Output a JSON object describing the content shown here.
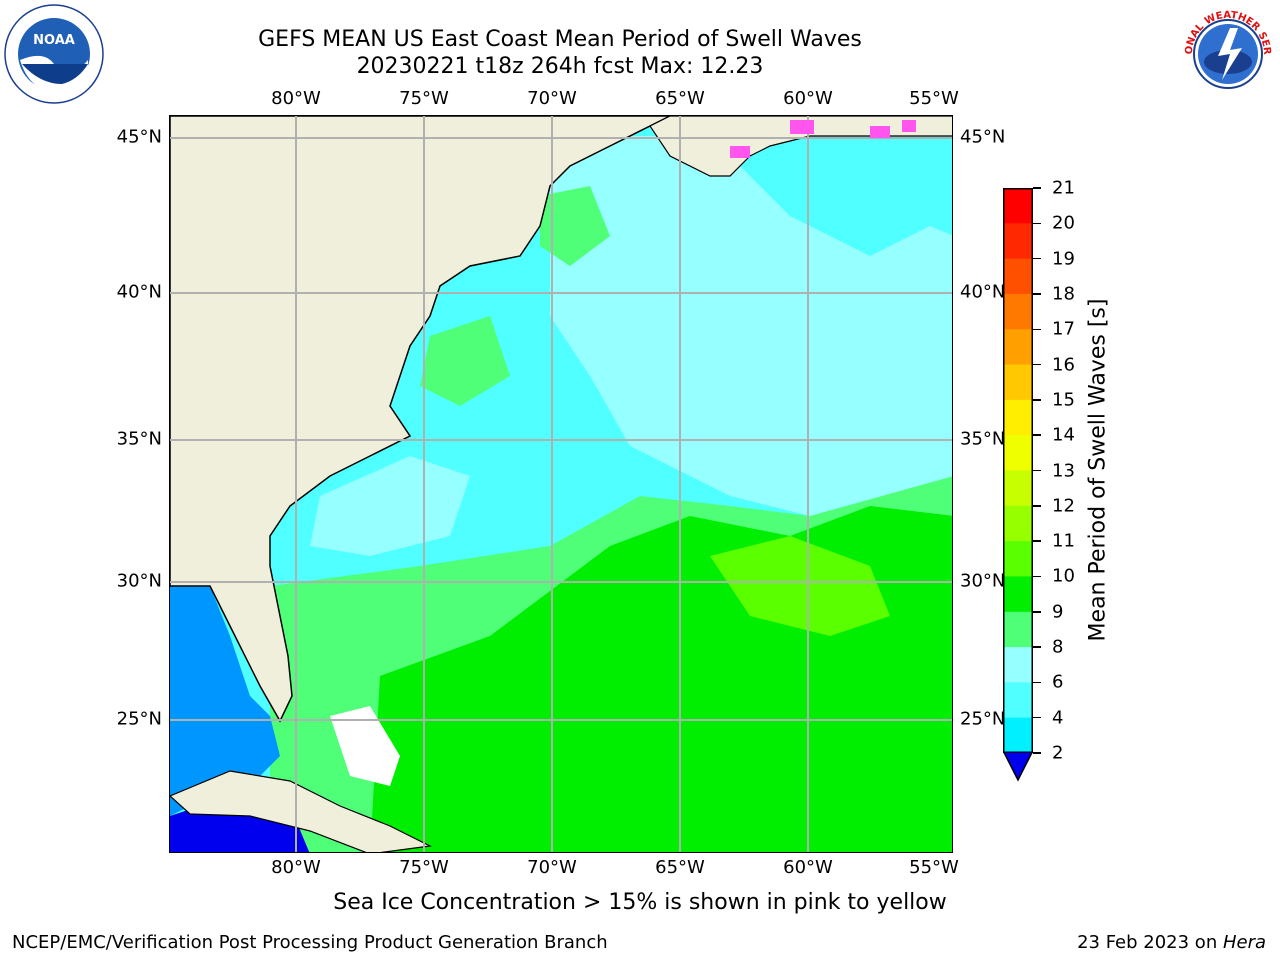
{
  "header": {
    "title_line1": "GEFS MEAN US East Coast Mean Period of Swell Waves",
    "title_line2": "20230221 t18z 264h fcst   Max: 12.23"
  },
  "logos": {
    "left": {
      "icon": "noaa-logo-icon",
      "text": "NOAA"
    },
    "right": {
      "icon": "nws-logo-icon",
      "text": "NATIONAL WEATHER SERVICE"
    }
  },
  "map": {
    "lon_labels": [
      "80°W",
      "75°W",
      "70°W",
      "65°W",
      "60°W",
      "55°W"
    ],
    "lat_labels": [
      "45°N",
      "40°N",
      "35°N",
      "30°N",
      "25°N"
    ],
    "land_color": "#efefdc",
    "grid_color": "#b0b0b0"
  },
  "colorbar": {
    "title": "Mean Period of Swell Waves [s]",
    "ticks": [
      "21",
      "20",
      "19",
      "18",
      "17",
      "16",
      "15",
      "14",
      "13",
      "12",
      "11",
      "10",
      "9",
      "8",
      "6",
      "4",
      "2"
    ],
    "colors": [
      "#ff0000",
      "#ff2800",
      "#ff5000",
      "#ff7800",
      "#ffa000",
      "#ffc800",
      "#ffee00",
      "#f0ff00",
      "#c8ff00",
      "#96ff00",
      "#5aff00",
      "#00ee00",
      "#50ff78",
      "#96ffff",
      "#50ffff",
      "#00f0ff",
      "#0096ff"
    ],
    "under_color": "#0000ee"
  },
  "footer": {
    "ice_note": "Sea Ice Concentration > 15% is shown in pink to yellow",
    "credit_left": "NCEP/EMC/Verification Post Processing Product Generation Branch",
    "credit_right_date": "23 Feb 2023 on ",
    "credit_right_host": "Hera"
  }
}
